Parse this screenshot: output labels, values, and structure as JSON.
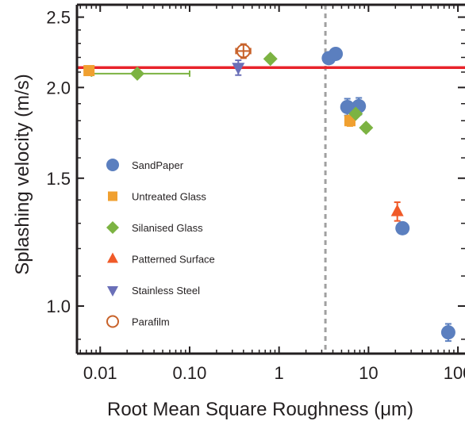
{
  "chart_data": {
    "type": "scatter",
    "xlabel": "Root Mean Square Roughness (μm)",
    "ylabel": "Splashing velocity (m/s)",
    "x_scale": "log",
    "y_scale": "log",
    "xlim": [
      0.0055,
      120
    ],
    "ylim": [
      0.86,
      2.6
    ],
    "x_ticks": [
      0.01,
      0.1,
      1,
      10,
      100
    ],
    "x_tick_labels": [
      "0.01",
      "0.10",
      "1",
      "10",
      "100"
    ],
    "y_ticks": [
      1.0,
      1.5,
      2.0,
      2.5
    ],
    "y_tick_labels": [
      "1.0",
      "1.5",
      "2.0",
      "2.5"
    ],
    "grid": false,
    "legend_position": "left-center",
    "reference_line": {
      "orientation": "horizontal",
      "y": 2.13,
      "color": "#e8232a"
    },
    "threshold_line": {
      "orientation": "vertical",
      "x": 3.3,
      "style": "dashed",
      "color": "#a0a0a0"
    },
    "series": [
      {
        "name": "SandPaper",
        "marker": "circle",
        "color": "#5b7fbf",
        "points": [
          {
            "x": 3.6,
            "y": 2.195,
            "yerr": 0.025
          },
          {
            "x": 4.3,
            "y": 2.225,
            "yerr": 0.035
          },
          {
            "x": 5.8,
            "y": 1.88,
            "yerr": 0.05
          },
          {
            "x": 7.8,
            "y": 1.885,
            "yerr": 0.05
          },
          {
            "x": 24,
            "y": 1.28,
            "yerr": 0.02
          },
          {
            "x": 78,
            "y": 0.92,
            "yerr": 0.025
          }
        ]
      },
      {
        "name": "Untreated Glass",
        "marker": "square",
        "color": "#f0a030",
        "points": [
          {
            "x": 0.0075,
            "y": 2.11,
            "yerr": 0.01
          },
          {
            "x": 6.2,
            "y": 1.8,
            "yerr": 0.03
          }
        ]
      },
      {
        "name": "Silanised Glass",
        "marker": "diamond",
        "color": "#7cb342",
        "points": [
          {
            "x": 0.026,
            "y": 2.09,
            "xerr": [
              0.008,
              0.1
            ],
            "yerr": 0.01
          },
          {
            "x": 0.8,
            "y": 2.19,
            "yerr": 0.02
          },
          {
            "x": 7.2,
            "y": 1.84,
            "yerr": 0.015
          },
          {
            "x": 9.4,
            "y": 1.76,
            "yerr": 0.02
          }
        ]
      },
      {
        "name": "Patterned Surface",
        "marker": "triangle-up",
        "color": "#f05a28",
        "points": [
          {
            "x": 21,
            "y": 1.35,
            "yerr": 0.04
          }
        ]
      },
      {
        "name": "Stainless Steel",
        "marker": "triangle-down",
        "color": "#6a6fb8",
        "points": [
          {
            "x": 0.35,
            "y": 2.13,
            "yerr": 0.05
          }
        ]
      },
      {
        "name": "Parafilm",
        "marker": "open-circle",
        "color": "#c8622a",
        "points": [
          {
            "x": 0.4,
            "y": 2.245,
            "xerr": [
              0.33,
              0.48
            ],
            "yerr": 0.05
          }
        ]
      }
    ]
  }
}
